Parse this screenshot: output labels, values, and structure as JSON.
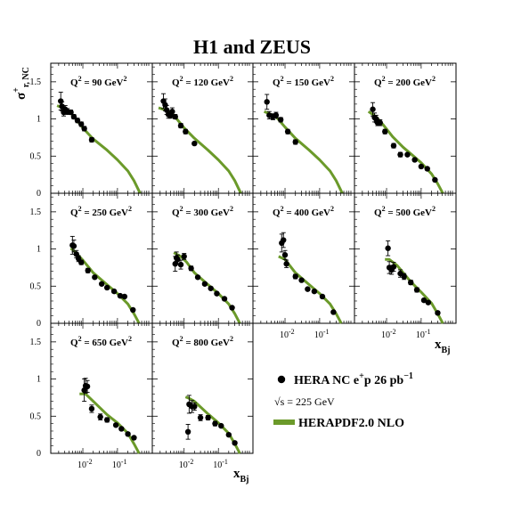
{
  "title": "H1 and ZEUS",
  "ylabel": {
    "main": "σ",
    "sup": "+",
    "sub": "r, NC"
  },
  "xlabel": {
    "main": "x",
    "sub": "Bj"
  },
  "legend": {
    "data_label": {
      "main": "HERA NC e",
      "sup": "+",
      "tail": "p 26 pb",
      "sup2": "−1"
    },
    "energy_label": "√s = 225 GeV",
    "fit_label": "HERAPDF2.0 NLO"
  },
  "colors": {
    "fit": "#6b9a2a",
    "data": "#000000",
    "frame": "#000000"
  },
  "chart_data": {
    "type": "scatter",
    "x_scale": "log",
    "xlim": [
      0.0015,
      0.8
    ],
    "ylim": [
      0,
      1.75
    ],
    "y_ticks": [
      {
        "value": 0,
        "label": "0"
      },
      {
        "value": 0.5,
        "label": "0.5"
      },
      {
        "value": 1,
        "label": "1"
      },
      {
        "value": 1.5,
        "label": "1.5"
      }
    ],
    "x_tick_labels": [
      {
        "value": 0.01,
        "base": "10",
        "exp": "-2"
      },
      {
        "value": 0.1,
        "base": "10",
        "exp": "-1"
      }
    ],
    "panels": [
      {
        "label_prefix": "Q",
        "label_sup": "2",
        "label_value": " = 90 GeV",
        "label_sup2": "2",
        "points": [
          [
            0.0023,
            1.24,
            0.12
          ],
          [
            0.0025,
            1.17,
            0.06
          ],
          [
            0.0028,
            1.09,
            0.05
          ],
          [
            0.0031,
            1.13,
            0.05
          ],
          [
            0.0036,
            1.1,
            0.04
          ],
          [
            0.0045,
            1.09,
            0.03
          ],
          [
            0.0055,
            1.03,
            0.03
          ],
          [
            0.007,
            0.98,
            0.03
          ],
          [
            0.009,
            0.93,
            0.03
          ],
          [
            0.011,
            0.87,
            0.03
          ],
          [
            0.018,
            0.72,
            0.03
          ]
        ],
        "fit": [
          [
            0.0018,
            1.18
          ],
          [
            0.003,
            1.14
          ],
          [
            0.005,
            1.06
          ],
          [
            0.01,
            0.88
          ],
          [
            0.02,
            0.73
          ],
          [
            0.05,
            0.58
          ],
          [
            0.1,
            0.45
          ],
          [
            0.2,
            0.3
          ],
          [
            0.3,
            0.17
          ],
          [
            0.4,
            0.05
          ],
          [
            0.45,
            0.0
          ]
        ]
      },
      {
        "label_prefix": "Q",
        "label_sup": "2",
        "label_value": " = 120 GeV",
        "label_sup2": "2",
        "points": [
          [
            0.0025,
            1.24,
            0.1
          ],
          [
            0.0028,
            1.19,
            0.08
          ],
          [
            0.0031,
            1.12,
            0.06
          ],
          [
            0.0035,
            1.06,
            0.05
          ],
          [
            0.004,
            1.05,
            0.04
          ],
          [
            0.0045,
            1.1,
            0.05
          ],
          [
            0.0055,
            1.03,
            0.03
          ],
          [
            0.008,
            0.91,
            0.03
          ],
          [
            0.011,
            0.83,
            0.03
          ],
          [
            0.02,
            0.67,
            0.02
          ]
        ],
        "fit": [
          [
            0.0018,
            1.15
          ],
          [
            0.003,
            1.12
          ],
          [
            0.005,
            1.05
          ],
          [
            0.01,
            0.88
          ],
          [
            0.02,
            0.74
          ],
          [
            0.05,
            0.58
          ],
          [
            0.1,
            0.45
          ],
          [
            0.2,
            0.3
          ],
          [
            0.3,
            0.17
          ],
          [
            0.4,
            0.05
          ],
          [
            0.45,
            0.0
          ]
        ]
      },
      {
        "label_prefix": "Q",
        "label_sup": "2",
        "label_value": " = 150 GeV",
        "label_sup2": "2",
        "points": [
          [
            0.003,
            1.23,
            0.1
          ],
          [
            0.0035,
            1.05,
            0.05
          ],
          [
            0.0045,
            1.03,
            0.04
          ],
          [
            0.0055,
            1.05,
            0.04
          ],
          [
            0.0075,
            0.99,
            0.03
          ],
          [
            0.012,
            0.83,
            0.03
          ],
          [
            0.02,
            0.69,
            0.03
          ]
        ],
        "fit": [
          [
            0.0025,
            1.1
          ],
          [
            0.004,
            1.06
          ],
          [
            0.006,
            1.01
          ],
          [
            0.01,
            0.89
          ],
          [
            0.02,
            0.74
          ],
          [
            0.05,
            0.58
          ],
          [
            0.1,
            0.45
          ],
          [
            0.2,
            0.3
          ],
          [
            0.3,
            0.17
          ],
          [
            0.4,
            0.05
          ],
          [
            0.45,
            0.0
          ]
        ]
      },
      {
        "label_prefix": "Q",
        "label_sup": "2",
        "label_value": " = 200 GeV",
        "label_sup2": "2",
        "points": [
          [
            0.004,
            1.13,
            0.09
          ],
          [
            0.0045,
            1.02,
            0.06
          ],
          [
            0.005,
            1.0,
            0.05
          ],
          [
            0.0055,
            0.95,
            0.04
          ],
          [
            0.0065,
            0.95,
            0.04
          ],
          [
            0.009,
            0.83,
            0.03
          ],
          [
            0.016,
            0.64,
            0.03
          ],
          [
            0.025,
            0.52,
            0.03
          ],
          [
            0.04,
            0.52,
            0.02
          ],
          [
            0.065,
            0.45,
            0.02
          ],
          [
            0.1,
            0.36,
            0.02
          ],
          [
            0.15,
            0.33,
            0.02
          ],
          [
            0.25,
            0.18,
            0.02
          ]
        ],
        "fit": [
          [
            0.003,
            1.1
          ],
          [
            0.005,
            1.03
          ],
          [
            0.008,
            0.92
          ],
          [
            0.015,
            0.76
          ],
          [
            0.03,
            0.62
          ],
          [
            0.06,
            0.5
          ],
          [
            0.1,
            0.41
          ],
          [
            0.2,
            0.26
          ],
          [
            0.3,
            0.13
          ],
          [
            0.4,
            0.02
          ],
          [
            0.42,
            0.0
          ]
        ]
      },
      {
        "label_prefix": "Q",
        "label_sup": "2",
        "label_value": " = 250 GeV",
        "label_sup2": "2",
        "points": [
          [
            0.005,
            1.05,
            0.12
          ],
          [
            0.0055,
            1.04,
            0.08
          ],
          [
            0.0065,
            0.93,
            0.05
          ],
          [
            0.0075,
            0.87,
            0.04
          ],
          [
            0.009,
            0.82,
            0.03
          ],
          [
            0.014,
            0.71,
            0.03
          ],
          [
            0.022,
            0.62,
            0.02
          ],
          [
            0.035,
            0.53,
            0.02
          ],
          [
            0.05,
            0.48,
            0.02
          ],
          [
            0.08,
            0.43,
            0.02
          ],
          [
            0.12,
            0.37,
            0.02
          ],
          [
            0.16,
            0.36,
            0.02
          ],
          [
            0.28,
            0.18,
            0.02
          ]
        ],
        "fit": [
          [
            0.0045,
            1.01
          ],
          [
            0.006,
            0.96
          ],
          [
            0.01,
            0.85
          ],
          [
            0.02,
            0.68
          ],
          [
            0.05,
            0.52
          ],
          [
            0.1,
            0.4
          ],
          [
            0.2,
            0.26
          ],
          [
            0.3,
            0.13
          ],
          [
            0.4,
            0.02
          ],
          [
            0.42,
            0.0
          ]
        ]
      },
      {
        "label_prefix": "Q",
        "label_sup": "2",
        "label_value": " = 300 GeV",
        "label_sup2": "2",
        "points": [
          [
            0.0055,
            0.8,
            0.1
          ],
          [
            0.006,
            0.88,
            0.08
          ],
          [
            0.0065,
            0.86,
            0.06
          ],
          [
            0.008,
            0.79,
            0.06
          ],
          [
            0.01,
            0.9,
            0.04
          ],
          [
            0.016,
            0.74,
            0.03
          ],
          [
            0.025,
            0.62,
            0.02
          ],
          [
            0.04,
            0.53,
            0.02
          ],
          [
            0.06,
            0.47,
            0.02
          ],
          [
            0.09,
            0.4,
            0.02
          ],
          [
            0.15,
            0.33,
            0.02
          ],
          [
            0.25,
            0.21,
            0.02
          ]
        ],
        "fit": [
          [
            0.005,
            0.95
          ],
          [
            0.008,
            0.9
          ],
          [
            0.012,
            0.82
          ],
          [
            0.02,
            0.68
          ],
          [
            0.05,
            0.52
          ],
          [
            0.1,
            0.4
          ],
          [
            0.2,
            0.26
          ],
          [
            0.3,
            0.13
          ],
          [
            0.4,
            0.02
          ],
          [
            0.42,
            0.0
          ]
        ]
      },
      {
        "label_prefix": "Q",
        "label_sup": "2",
        "label_value": " = 400 GeV",
        "label_sup2": "2",
        "points": [
          [
            0.008,
            1.08,
            0.12
          ],
          [
            0.009,
            1.12,
            0.1
          ],
          [
            0.01,
            0.92,
            0.06
          ],
          [
            0.011,
            0.8,
            0.05
          ],
          [
            0.02,
            0.63,
            0.03
          ],
          [
            0.03,
            0.58,
            0.02
          ],
          [
            0.045,
            0.46,
            0.02
          ],
          [
            0.07,
            0.43,
            0.02
          ],
          [
            0.12,
            0.36,
            0.02
          ],
          [
            0.25,
            0.15,
            0.02
          ]
        ],
        "fit": [
          [
            0.0065,
            0.9
          ],
          [
            0.01,
            0.86
          ],
          [
            0.02,
            0.68
          ],
          [
            0.05,
            0.52
          ],
          [
            0.1,
            0.4
          ],
          [
            0.2,
            0.26
          ],
          [
            0.3,
            0.13
          ],
          [
            0.4,
            0.02
          ],
          [
            0.42,
            0.0
          ]
        ]
      },
      {
        "label_prefix": "Q",
        "label_sup": "2",
        "label_value": " = 500 GeV",
        "label_sup2": "2",
        "points": [
          [
            0.011,
            1.01,
            0.1
          ],
          [
            0.012,
            0.75,
            0.08
          ],
          [
            0.014,
            0.72,
            0.06
          ],
          [
            0.016,
            0.76,
            0.06
          ],
          [
            0.025,
            0.67,
            0.05
          ],
          [
            0.032,
            0.63,
            0.04
          ],
          [
            0.05,
            0.55,
            0.03
          ],
          [
            0.075,
            0.45,
            0.03
          ],
          [
            0.12,
            0.31,
            0.02
          ],
          [
            0.16,
            0.28,
            0.02
          ],
          [
            0.3,
            0.14,
            0.02
          ]
        ],
        "fit": [
          [
            0.009,
            0.86
          ],
          [
            0.012,
            0.86
          ],
          [
            0.02,
            0.78
          ],
          [
            0.05,
            0.56
          ],
          [
            0.1,
            0.42
          ],
          [
            0.2,
            0.27
          ],
          [
            0.3,
            0.13
          ],
          [
            0.4,
            0.02
          ],
          [
            0.42,
            0.0
          ]
        ]
      },
      {
        "label_prefix": "Q",
        "label_sup": "2",
        "label_value": " = 650 GeV",
        "label_sup2": "2",
        "points": [
          [
            0.011,
            0.85,
            0.15
          ],
          [
            0.012,
            0.91,
            0.1
          ],
          [
            0.0135,
            0.9,
            0.08
          ],
          [
            0.018,
            0.6,
            0.05
          ],
          [
            0.032,
            0.49,
            0.04
          ],
          [
            0.05,
            0.45,
            0.03
          ],
          [
            0.09,
            0.38,
            0.02
          ],
          [
            0.13,
            0.33,
            0.02
          ],
          [
            0.2,
            0.26,
            0.02
          ],
          [
            0.3,
            0.21,
            0.02
          ]
        ],
        "fit": [
          [
            0.008,
            0.8
          ],
          [
            0.012,
            0.8
          ],
          [
            0.02,
            0.7
          ],
          [
            0.05,
            0.52
          ],
          [
            0.1,
            0.41
          ],
          [
            0.2,
            0.27
          ],
          [
            0.3,
            0.13
          ],
          [
            0.4,
            0.02
          ],
          [
            0.42,
            0.0
          ]
        ]
      },
      {
        "label_prefix": "Q",
        "label_sup": "2",
        "label_value": " = 800 GeV",
        "label_sup2": "2",
        "points": [
          [
            0.013,
            0.29,
            0.1
          ],
          [
            0.014,
            0.66,
            0.12
          ],
          [
            0.017,
            0.63,
            0.08
          ],
          [
            0.02,
            0.63,
            0.05
          ],
          [
            0.03,
            0.48,
            0.04
          ],
          [
            0.05,
            0.48,
            0.03
          ],
          [
            0.08,
            0.4,
            0.03
          ],
          [
            0.12,
            0.37,
            0.02
          ],
          [
            0.2,
            0.25,
            0.02
          ],
          [
            0.3,
            0.14,
            0.02
          ]
        ],
        "fit": [
          [
            0.011,
            0.76
          ],
          [
            0.014,
            0.74
          ],
          [
            0.02,
            0.7
          ],
          [
            0.05,
            0.53
          ],
          [
            0.1,
            0.41
          ],
          [
            0.2,
            0.27
          ],
          [
            0.3,
            0.13
          ],
          [
            0.4,
            0.02
          ],
          [
            0.42,
            0.0
          ]
        ]
      }
    ]
  }
}
